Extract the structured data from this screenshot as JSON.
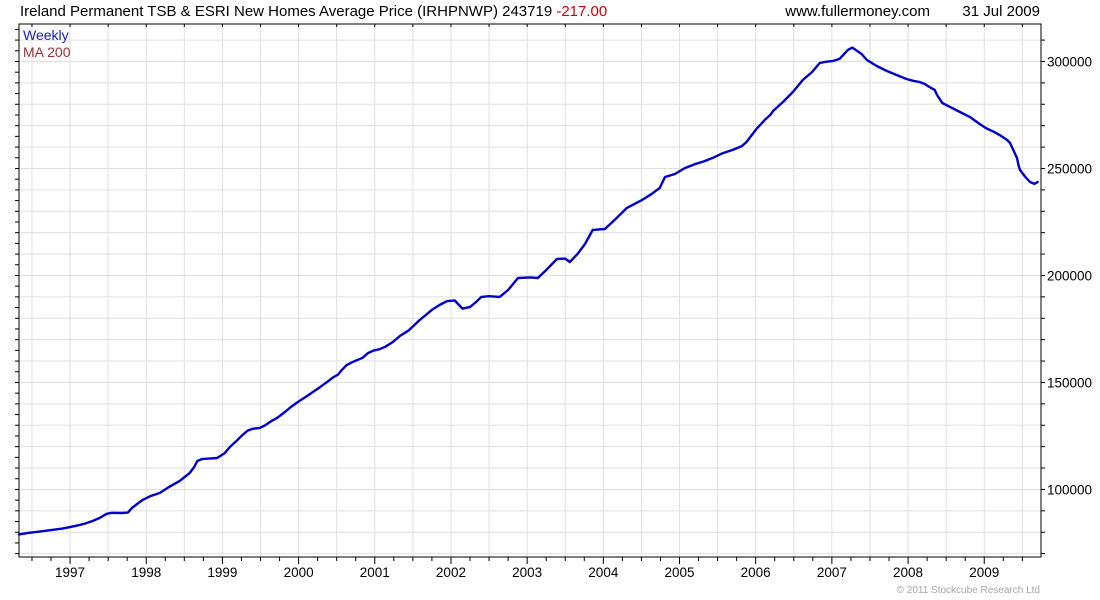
{
  "header": {
    "title": "Ireland Permanent TSB & ESRI New Homes Average Price (IRHPNWP) 243719",
    "change": "-217.00",
    "website": "www.fullermoney.com",
    "date": "31 Jul 2009"
  },
  "legend": {
    "series": [
      {
        "label": "Weekly",
        "color": "#1a1acc"
      },
      {
        "label": "MA 200",
        "color": "#993333"
      }
    ]
  },
  "footer": {
    "copyright": "© 2011 Stockcube Research Ltd"
  },
  "chart_data": {
    "type": "line",
    "title": "Ireland Permanent TSB & ESRI New Homes Average Price (IRHPNWP)",
    "last_price": 243719,
    "change": -217.0,
    "date": "31 Jul 2009",
    "xlabel": "",
    "ylabel": "",
    "x_ticks": [
      1997,
      1998,
      1999,
      2000,
      2001,
      2002,
      2003,
      2004,
      2005,
      2006,
      2007,
      2008,
      2009
    ],
    "y_ticks": [
      100000,
      150000,
      200000,
      250000,
      300000
    ],
    "xlim": [
      1996.33,
      2009.745
    ],
    "ylim": [
      68430,
      317520
    ],
    "grid": {
      "x_step": 0.5,
      "y_step": 10000,
      "color": "#e0e0e0",
      "on": true
    },
    "axis_color": "#000000",
    "background": "#ffffff",
    "legend_position": "top-left",
    "series": [
      {
        "name": "Weekly",
        "color": "#0000cc",
        "width": 2.4,
        "points": [
          [
            1996.33,
            79000
          ],
          [
            1996.45,
            79700
          ],
          [
            1996.6,
            80300
          ],
          [
            1996.75,
            81000
          ],
          [
            1996.9,
            81700
          ],
          [
            1997.0,
            82400
          ],
          [
            1997.1,
            83200
          ],
          [
            1997.2,
            84100
          ],
          [
            1997.3,
            85300
          ],
          [
            1997.39,
            86700
          ],
          [
            1997.48,
            88600
          ],
          [
            1997.55,
            89100
          ],
          [
            1997.68,
            89000
          ],
          [
            1997.76,
            89200
          ],
          [
            1997.81,
            91300
          ],
          [
            1997.88,
            93200
          ],
          [
            1997.95,
            95000
          ],
          [
            1998.05,
            96800
          ],
          [
            1998.18,
            98400
          ],
          [
            1998.3,
            101200
          ],
          [
            1998.44,
            104000
          ],
          [
            1998.57,
            107700
          ],
          [
            1998.63,
            110500
          ],
          [
            1998.67,
            113300
          ],
          [
            1998.73,
            114200
          ],
          [
            1998.85,
            114500
          ],
          [
            1998.93,
            114700
          ],
          [
            1999.03,
            117000
          ],
          [
            1999.1,
            119900
          ],
          [
            1999.18,
            122500
          ],
          [
            1999.26,
            125300
          ],
          [
            1999.33,
            127500
          ],
          [
            1999.4,
            128400
          ],
          [
            1999.49,
            128700
          ],
          [
            1999.56,
            130000
          ],
          [
            1999.64,
            131900
          ],
          [
            1999.72,
            133500
          ],
          [
            1999.82,
            136200
          ],
          [
            1999.9,
            138600
          ],
          [
            2000.0,
            141100
          ],
          [
            2000.1,
            143400
          ],
          [
            2000.2,
            145800
          ],
          [
            2000.28,
            147800
          ],
          [
            2000.37,
            150100
          ],
          [
            2000.45,
            152300
          ],
          [
            2000.52,
            153700
          ],
          [
            2000.57,
            155900
          ],
          [
            2000.63,
            158100
          ],
          [
            2000.7,
            159400
          ],
          [
            2000.76,
            160300
          ],
          [
            2000.84,
            161500
          ],
          [
            2000.91,
            163700
          ],
          [
            2000.98,
            164900
          ],
          [
            2001.06,
            165500
          ],
          [
            2001.14,
            166700
          ],
          [
            2001.23,
            168700
          ],
          [
            2001.33,
            171700
          ],
          [
            2001.44,
            174200
          ],
          [
            2001.59,
            179200
          ],
          [
            2001.75,
            183900
          ],
          [
            2001.85,
            186200
          ],
          [
            2001.95,
            188000
          ],
          [
            2002.05,
            188300
          ],
          [
            2002.15,
            184500
          ],
          [
            2002.25,
            185200
          ],
          [
            2002.33,
            187600
          ],
          [
            2002.4,
            190000
          ],
          [
            2002.5,
            190300
          ],
          [
            2002.64,
            190000
          ],
          [
            2002.75,
            193200
          ],
          [
            2002.88,
            198800
          ],
          [
            2003.04,
            199100
          ],
          [
            2003.14,
            198800
          ],
          [
            2003.25,
            202500
          ],
          [
            2003.39,
            207700
          ],
          [
            2003.5,
            207900
          ],
          [
            2003.56,
            206300
          ],
          [
            2003.66,
            210000
          ],
          [
            2003.76,
            214700
          ],
          [
            2003.86,
            221300
          ],
          [
            2004.02,
            221700
          ],
          [
            2004.15,
            226000
          ],
          [
            2004.31,
            231600
          ],
          [
            2004.51,
            235300
          ],
          [
            2004.63,
            238000
          ],
          [
            2004.74,
            240900
          ],
          [
            2004.81,
            246000
          ],
          [
            2004.94,
            247400
          ],
          [
            2005.07,
            250200
          ],
          [
            2005.2,
            252000
          ],
          [
            2005.32,
            253300
          ],
          [
            2005.44,
            255000
          ],
          [
            2005.57,
            257200
          ],
          [
            2005.7,
            258700
          ],
          [
            2005.82,
            260500
          ],
          [
            2005.88,
            262400
          ],
          [
            2006.01,
            268500
          ],
          [
            2006.12,
            272700
          ],
          [
            2006.19,
            275000
          ],
          [
            2006.23,
            276900
          ],
          [
            2006.36,
            281100
          ],
          [
            2006.49,
            285800
          ],
          [
            2006.62,
            291400
          ],
          [
            2006.74,
            295100
          ],
          [
            2006.84,
            299300
          ],
          [
            2006.93,
            299900
          ],
          [
            2007.01,
            300200
          ],
          [
            2007.1,
            301200
          ],
          [
            2007.21,
            305400
          ],
          [
            2007.27,
            306500
          ],
          [
            2007.33,
            305000
          ],
          [
            2007.39,
            303500
          ],
          [
            2007.46,
            300700
          ],
          [
            2007.59,
            297900
          ],
          [
            2007.72,
            295600
          ],
          [
            2007.85,
            293700
          ],
          [
            2007.98,
            291800
          ],
          [
            2008.06,
            291000
          ],
          [
            2008.15,
            290400
          ],
          [
            2008.22,
            289500
          ],
          [
            2008.28,
            288100
          ],
          [
            2008.35,
            286700
          ],
          [
            2008.38,
            284400
          ],
          [
            2008.45,
            280600
          ],
          [
            2008.55,
            278800
          ],
          [
            2008.68,
            276400
          ],
          [
            2008.81,
            274100
          ],
          [
            2008.94,
            270800
          ],
          [
            2009.02,
            268900
          ],
          [
            2009.13,
            267100
          ],
          [
            2009.2,
            265700
          ],
          [
            2009.3,
            263300
          ],
          [
            2009.34,
            261900
          ],
          [
            2009.38,
            258700
          ],
          [
            2009.43,
            254900
          ],
          [
            2009.45,
            251600
          ],
          [
            2009.47,
            249300
          ],
          [
            2009.54,
            246000
          ],
          [
            2009.6,
            243700
          ],
          [
            2009.66,
            242800
          ],
          [
            2009.7,
            243700
          ]
        ]
      },
      {
        "name": "MA 200",
        "color": "#993333",
        "width": 2,
        "points": []
      }
    ]
  }
}
